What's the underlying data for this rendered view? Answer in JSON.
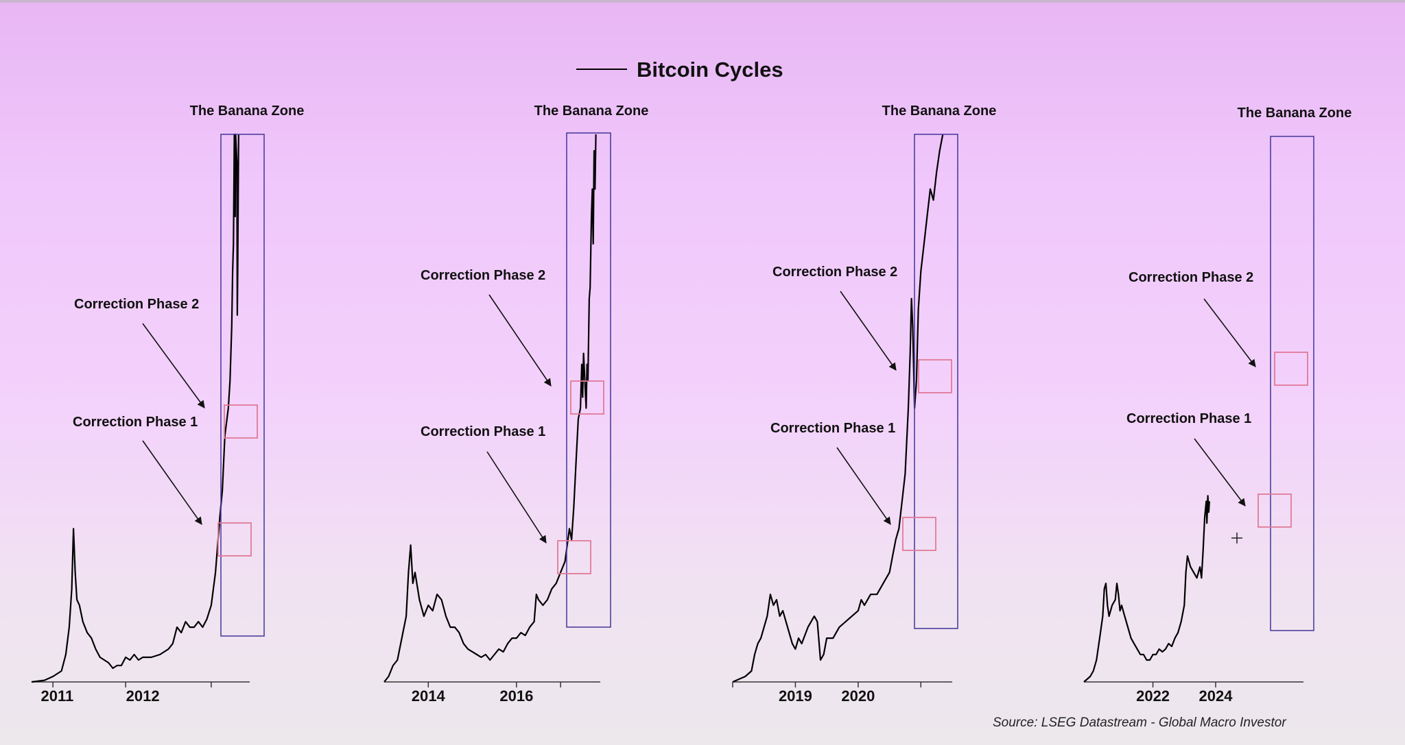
{
  "title": "Bitcoin Cycles",
  "source": "Source: LSEG Datastream - Global Macro Investor",
  "colors": {
    "price_line": "#000000",
    "banana_zone": "#4b3f9e",
    "correction_box": "#e07a98",
    "arrow": "#111111"
  },
  "chart_data": [
    {
      "type": "line",
      "title": "Bitcoin Cycles",
      "annotations": {
        "zone": "The Banana Zone",
        "phase2": "Correction Phase 2",
        "phase1": "Correction Phase 1"
      },
      "xlim": [
        2010.4,
        2012.95
      ],
      "x_ticks": [
        2011,
        2012
      ],
      "tick_marks": [
        2010.65,
        2011.5,
        2012.5
      ],
      "zone_range": [
        2012.45,
        2012.95
      ],
      "series": [
        {
          "values": [
            [
              2010.4,
              0.0
            ],
            [
              2010.55,
              0.003
            ],
            [
              2010.65,
              0.01
            ],
            [
              2010.75,
              0.02
            ],
            [
              2010.8,
              0.05
            ],
            [
              2010.84,
              0.1
            ],
            [
              2010.87,
              0.17
            ],
            [
              2010.89,
              0.28
            ],
            [
              2010.91,
              0.2
            ],
            [
              2010.93,
              0.15
            ],
            [
              2010.96,
              0.14
            ],
            [
              2011.0,
              0.11
            ],
            [
              2011.05,
              0.09
            ],
            [
              2011.1,
              0.08
            ],
            [
              2011.15,
              0.06
            ],
            [
              2011.2,
              0.045
            ],
            [
              2011.25,
              0.04
            ],
            [
              2011.3,
              0.035
            ],
            [
              2011.35,
              0.025
            ],
            [
              2011.4,
              0.03
            ],
            [
              2011.45,
              0.03
            ],
            [
              2011.5,
              0.045
            ],
            [
              2011.55,
              0.04
            ],
            [
              2011.6,
              0.05
            ],
            [
              2011.65,
              0.04
            ],
            [
              2011.7,
              0.045
            ],
            [
              2011.8,
              0.045
            ],
            [
              2011.9,
              0.05
            ],
            [
              2012.0,
              0.06
            ],
            [
              2012.05,
              0.07
            ],
            [
              2012.1,
              0.1
            ],
            [
              2012.15,
              0.09
            ],
            [
              2012.2,
              0.11
            ],
            [
              2012.25,
              0.1
            ],
            [
              2012.3,
              0.1
            ],
            [
              2012.35,
              0.11
            ],
            [
              2012.4,
              0.1
            ],
            [
              2012.45,
              0.115
            ],
            [
              2012.5,
              0.14
            ],
            [
              2012.55,
              0.2
            ],
            [
              2012.58,
              0.26
            ],
            [
              2012.6,
              0.3
            ],
            [
              2012.63,
              0.35
            ],
            [
              2012.66,
              0.45
            ],
            [
              2012.7,
              0.5
            ],
            [
              2012.72,
              0.55
            ],
            [
              2012.74,
              0.65
            ],
            [
              2012.75,
              0.75
            ],
            [
              2012.76,
              0.8
            ],
            [
              2012.77,
              1.0
            ],
            [
              2012.78,
              0.85
            ],
            [
              2012.785,
              1.0
            ],
            [
              2012.8,
              0.95
            ],
            [
              2012.805,
              0.67
            ],
            [
              2012.81,
              0.75
            ],
            [
              2012.82,
              1.0
            ]
          ]
        }
      ],
      "ylim": [
        0,
        1
      ]
    },
    {
      "type": "line",
      "annotations": {
        "zone": "The Banana Zone",
        "phase2": "Correction Phase 2",
        "phase1": "Correction Phase 1"
      },
      "xlim": [
        2013.0,
        2017.9
      ],
      "x_ticks": [
        2014,
        2016
      ],
      "tick_marks": [
        2014.0,
        2016.0,
        2017.0
      ],
      "zone_range": [
        2017.05,
        2017.8
      ],
      "series": [
        {
          "values": [
            [
              2013.0,
              0.0
            ],
            [
              2013.1,
              0.01
            ],
            [
              2013.2,
              0.03
            ],
            [
              2013.3,
              0.04
            ],
            [
              2013.4,
              0.08
            ],
            [
              2013.5,
              0.12
            ],
            [
              2013.55,
              0.2
            ],
            [
              2013.6,
              0.25
            ],
            [
              2013.65,
              0.18
            ],
            [
              2013.7,
              0.2
            ],
            [
              2013.8,
              0.15
            ],
            [
              2013.9,
              0.12
            ],
            [
              2014.0,
              0.14
            ],
            [
              2014.1,
              0.13
            ],
            [
              2014.2,
              0.16
            ],
            [
              2014.3,
              0.15
            ],
            [
              2014.4,
              0.12
            ],
            [
              2014.5,
              0.1
            ],
            [
              2014.6,
              0.1
            ],
            [
              2014.7,
              0.09
            ],
            [
              2014.8,
              0.07
            ],
            [
              2014.9,
              0.06
            ],
            [
              2015.0,
              0.055
            ],
            [
              2015.1,
              0.05
            ],
            [
              2015.2,
              0.045
            ],
            [
              2015.3,
              0.05
            ],
            [
              2015.4,
              0.04
            ],
            [
              2015.5,
              0.05
            ],
            [
              2015.6,
              0.06
            ],
            [
              2015.7,
              0.055
            ],
            [
              2015.8,
              0.07
            ],
            [
              2015.9,
              0.08
            ],
            [
              2016.0,
              0.08
            ],
            [
              2016.1,
              0.09
            ],
            [
              2016.2,
              0.085
            ],
            [
              2016.3,
              0.1
            ],
            [
              2016.4,
              0.11
            ],
            [
              2016.45,
              0.16
            ],
            [
              2016.5,
              0.15
            ],
            [
              2016.6,
              0.14
            ],
            [
              2016.7,
              0.15
            ],
            [
              2016.8,
              0.17
            ],
            [
              2016.9,
              0.18
            ],
            [
              2017.0,
              0.2
            ],
            [
              2017.1,
              0.22
            ],
            [
              2017.15,
              0.25
            ],
            [
              2017.2,
              0.28
            ],
            [
              2017.25,
              0.26
            ],
            [
              2017.3,
              0.32
            ],
            [
              2017.35,
              0.4
            ],
            [
              2017.4,
              0.48
            ],
            [
              2017.45,
              0.5
            ],
            [
              2017.48,
              0.58
            ],
            [
              2017.5,
              0.52
            ],
            [
              2017.52,
              0.6
            ],
            [
              2017.55,
              0.55
            ],
            [
              2017.58,
              0.5
            ],
            [
              2017.6,
              0.58
            ],
            [
              2017.62,
              0.55
            ],
            [
              2017.65,
              0.7
            ],
            [
              2017.67,
              0.72
            ],
            [
              2017.7,
              0.85
            ],
            [
              2017.72,
              0.9
            ],
            [
              2017.74,
              0.8
            ],
            [
              2017.76,
              0.97
            ],
            [
              2017.78,
              0.9
            ],
            [
              2017.8,
              1.0
            ]
          ]
        }
      ],
      "ylim": [
        0,
        1
      ]
    },
    {
      "type": "line",
      "annotations": {
        "zone": "The Banana Zone",
        "phase2": "Correction Phase 2",
        "phase1": "Correction Phase 1"
      },
      "xlim": [
        2018.0,
        2021.5
      ],
      "x_ticks": [
        2019,
        2020
      ],
      "tick_marks": [
        2018.0,
        2019.0,
        2020.0,
        2021.0
      ],
      "zone_range": [
        2020.95,
        2021.4
      ],
      "series": [
        {
          "values": [
            [
              2018.0,
              0.0
            ],
            [
              2018.1,
              0.005
            ],
            [
              2018.2,
              0.01
            ],
            [
              2018.3,
              0.02
            ],
            [
              2018.35,
              0.05
            ],
            [
              2018.4,
              0.07
            ],
            [
              2018.45,
              0.08
            ],
            [
              2018.5,
              0.1
            ],
            [
              2018.55,
              0.12
            ],
            [
              2018.6,
              0.16
            ],
            [
              2018.65,
              0.14
            ],
            [
              2018.7,
              0.15
            ],
            [
              2018.75,
              0.12
            ],
            [
              2018.8,
              0.13
            ],
            [
              2018.9,
              0.09
            ],
            [
              2018.95,
              0.07
            ],
            [
              2019.0,
              0.06
            ],
            [
              2019.05,
              0.08
            ],
            [
              2019.1,
              0.07
            ],
            [
              2019.2,
              0.1
            ],
            [
              2019.3,
              0.12
            ],
            [
              2019.35,
              0.11
            ],
            [
              2019.4,
              0.04
            ],
            [
              2019.45,
              0.05
            ],
            [
              2019.5,
              0.08
            ],
            [
              2019.6,
              0.08
            ],
            [
              2019.7,
              0.1
            ],
            [
              2019.8,
              0.11
            ],
            [
              2019.9,
              0.12
            ],
            [
              2020.0,
              0.13
            ],
            [
              2020.05,
              0.15
            ],
            [
              2020.1,
              0.14
            ],
            [
              2020.2,
              0.16
            ],
            [
              2020.3,
              0.16
            ],
            [
              2020.4,
              0.18
            ],
            [
              2020.5,
              0.2
            ],
            [
              2020.55,
              0.23
            ],
            [
              2020.6,
              0.26
            ],
            [
              2020.65,
              0.28
            ],
            [
              2020.7,
              0.33
            ],
            [
              2020.75,
              0.38
            ],
            [
              2020.8,
              0.5
            ],
            [
              2020.83,
              0.6
            ],
            [
              2020.85,
              0.7
            ],
            [
              2020.87,
              0.65
            ],
            [
              2020.9,
              0.5
            ],
            [
              2020.93,
              0.55
            ],
            [
              2020.96,
              0.68
            ],
            [
              2021.0,
              0.75
            ],
            [
              2021.05,
              0.8
            ],
            [
              2021.1,
              0.85
            ],
            [
              2021.15,
              0.9
            ],
            [
              2021.2,
              0.88
            ],
            [
              2021.25,
              0.93
            ],
            [
              2021.3,
              0.97
            ],
            [
              2021.35,
              1.0
            ]
          ]
        }
      ],
      "ylim": [
        0,
        1
      ]
    },
    {
      "type": "line",
      "annotations": {
        "zone": "The Banana Zone",
        "phase2": "Correction Phase 2",
        "phase1": "Correction Phase 1"
      },
      "xlim": [
        2019.8,
        2026.8
      ],
      "x_ticks": [
        2022,
        2024
      ],
      "tick_marks": [
        2022.0,
        2024.0
      ],
      "zone_range": [
        2025.3,
        2026.0
      ],
      "series": [
        {
          "values": [
            [
              2019.8,
              0.0
            ],
            [
              2019.9,
              0.005
            ],
            [
              2020.0,
              0.01
            ],
            [
              2020.1,
              0.02
            ],
            [
              2020.2,
              0.04
            ],
            [
              2020.3,
              0.08
            ],
            [
              2020.4,
              0.12
            ],
            [
              2020.45,
              0.17
            ],
            [
              2020.5,
              0.18
            ],
            [
              2020.55,
              0.14
            ],
            [
              2020.6,
              0.12
            ],
            [
              2020.7,
              0.14
            ],
            [
              2020.8,
              0.15
            ],
            [
              2020.85,
              0.18
            ],
            [
              2020.9,
              0.16
            ],
            [
              2020.95,
              0.13
            ],
            [
              2021.0,
              0.14
            ],
            [
              2021.1,
              0.12
            ],
            [
              2021.2,
              0.1
            ],
            [
              2021.3,
              0.08
            ],
            [
              2021.4,
              0.07
            ],
            [
              2021.5,
              0.06
            ],
            [
              2021.6,
              0.05
            ],
            [
              2021.7,
              0.05
            ],
            [
              2021.8,
              0.04
            ],
            [
              2021.9,
              0.04
            ],
            [
              2022.0,
              0.05
            ],
            [
              2022.1,
              0.05
            ],
            [
              2022.2,
              0.06
            ],
            [
              2022.3,
              0.055
            ],
            [
              2022.4,
              0.06
            ],
            [
              2022.5,
              0.07
            ],
            [
              2022.6,
              0.065
            ],
            [
              2022.7,
              0.08
            ],
            [
              2022.8,
              0.09
            ],
            [
              2022.9,
              0.11
            ],
            [
              2023.0,
              0.14
            ],
            [
              2023.05,
              0.2
            ],
            [
              2023.1,
              0.23
            ],
            [
              2023.15,
              0.22
            ],
            [
              2023.2,
              0.21
            ],
            [
              2023.3,
              0.2
            ],
            [
              2023.4,
              0.19
            ],
            [
              2023.5,
              0.21
            ],
            [
              2023.55,
              0.19
            ],
            [
              2023.6,
              0.24
            ],
            [
              2023.65,
              0.3
            ],
            [
              2023.7,
              0.33
            ],
            [
              2023.72,
              0.29
            ],
            [
              2023.75,
              0.34
            ],
            [
              2023.78,
              0.31
            ],
            [
              2023.8,
              0.33
            ]
          ]
        }
      ],
      "ylim": [
        0,
        1
      ]
    }
  ]
}
